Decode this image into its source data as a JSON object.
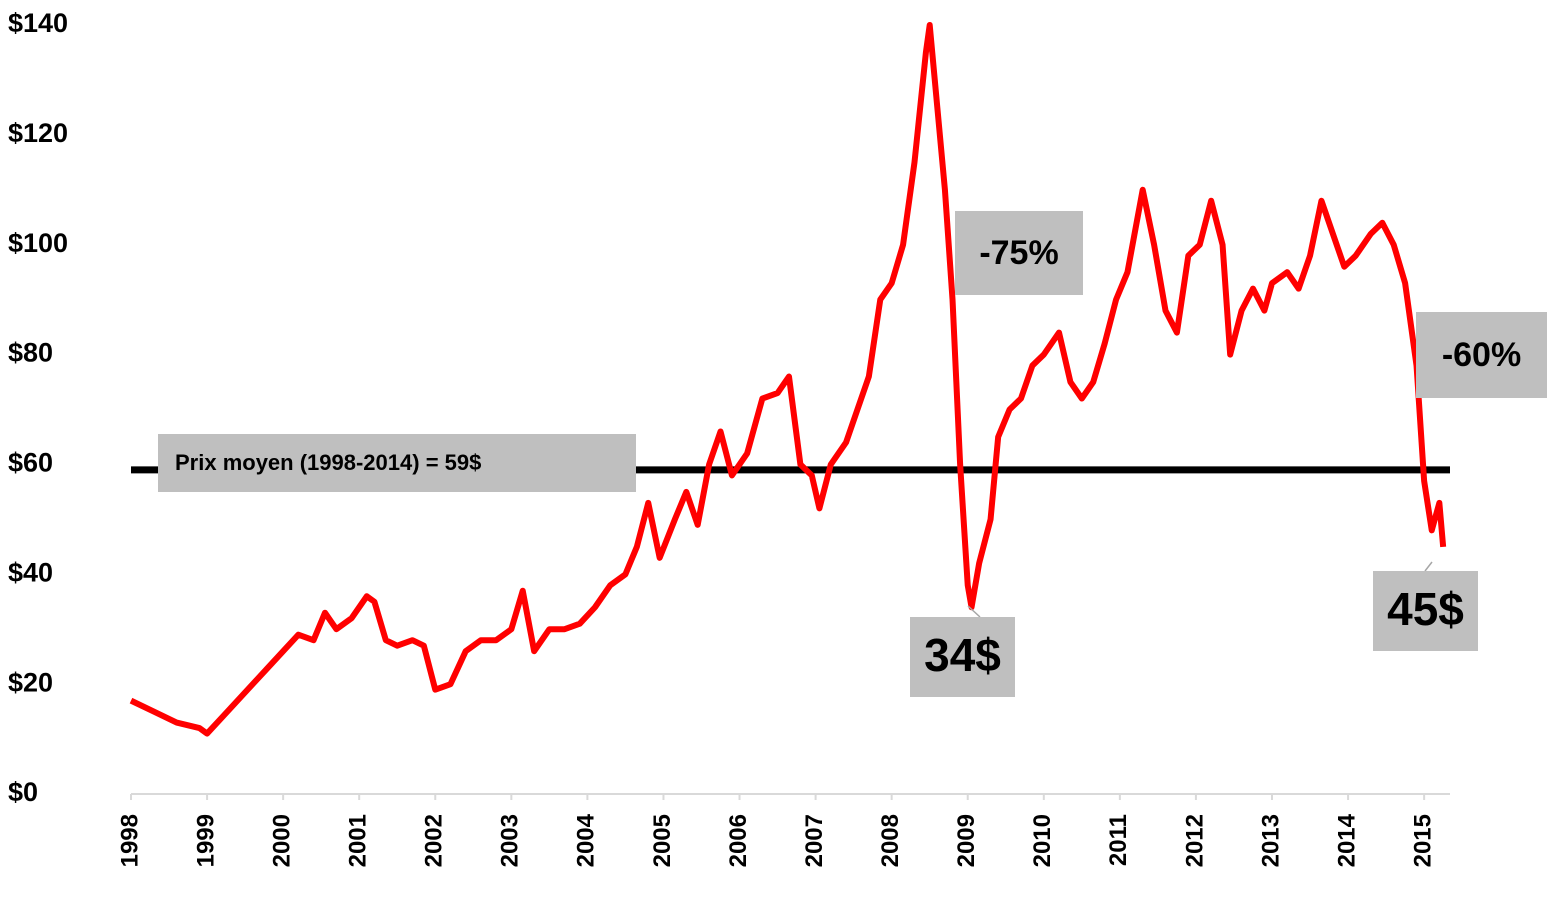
{
  "chart_data": {
    "type": "line",
    "x": [
      1998.0,
      1998.3,
      1998.6,
      1998.9,
      1999.0,
      1999.2,
      1999.4,
      1999.6,
      1999.8,
      2000.0,
      2000.2,
      2000.4,
      2000.55,
      2000.7,
      2000.9,
      2001.1,
      2001.2,
      2001.35,
      2001.5,
      2001.7,
      2001.85,
      2002.0,
      2002.2,
      2002.4,
      2002.6,
      2002.8,
      2003.0,
      2003.15,
      2003.3,
      2003.5,
      2003.7,
      2003.9,
      2004.1,
      2004.3,
      2004.5,
      2004.65,
      2004.8,
      2004.95,
      2005.15,
      2005.3,
      2005.45,
      2005.6,
      2005.75,
      2005.9,
      2006.1,
      2006.3,
      2006.5,
      2006.65,
      2006.8,
      2006.95,
      2007.05,
      2007.2,
      2007.4,
      2007.55,
      2007.7,
      2007.85,
      2008.0,
      2008.15,
      2008.3,
      2008.45,
      2008.5,
      2008.6,
      2008.7,
      2008.8,
      2008.9,
      2009.0,
      2009.05,
      2009.15,
      2009.3,
      2009.4,
      2009.55,
      2009.7,
      2009.85,
      2010.0,
      2010.2,
      2010.35,
      2010.5,
      2010.65,
      2010.8,
      2010.95,
      2011.1,
      2011.3,
      2011.45,
      2011.6,
      2011.75,
      2011.9,
      2012.05,
      2012.2,
      2012.35,
      2012.45,
      2012.6,
      2012.75,
      2012.9,
      2013.0,
      2013.2,
      2013.35,
      2013.5,
      2013.65,
      2013.8,
      2013.95,
      2014.1,
      2014.3,
      2014.45,
      2014.6,
      2014.75,
      2014.9,
      2015.0,
      2015.1,
      2015.2,
      2015.25
    ],
    "series": [
      {
        "color": "#ff0000",
        "values": [
          17,
          15,
          13,
          12,
          11,
          14,
          17,
          20,
          23,
          26,
          29,
          28,
          33,
          30,
          32,
          36,
          35,
          28,
          27,
          28,
          27,
          19,
          20,
          26,
          28,
          28,
          30,
          37,
          26,
          30,
          30,
          31,
          34,
          38,
          40,
          45,
          53,
          43,
          50,
          55,
          49,
          60,
          66,
          58,
          62,
          72,
          73,
          76,
          60,
          58,
          52,
          60,
          64,
          70,
          76,
          90,
          93,
          100,
          115,
          135,
          140,
          125,
          110,
          90,
          60,
          38,
          34,
          42,
          50,
          65,
          70,
          72,
          78,
          80,
          84,
          75,
          72,
          75,
          82,
          90,
          95,
          110,
          100,
          88,
          84,
          98,
          100,
          108,
          100,
          80,
          88,
          92,
          88,
          93,
          95,
          92,
          98,
          108,
          102,
          96,
          98,
          102,
          104,
          100,
          93,
          78,
          57,
          48,
          53,
          45
        ]
      }
    ],
    "xlim": [
      1998,
      2015.34
    ],
    "ylim": [
      0,
      140
    ],
    "xticks": [
      1998,
      1999,
      2000,
      2001,
      2002,
      2003,
      2004,
      2005,
      2006,
      2007,
      2008,
      2009,
      2010,
      2011,
      2012,
      2013,
      2014,
      2015
    ],
    "yticks": [
      {
        "value": 0,
        "label": "$0"
      },
      {
        "value": 20,
        "label": "$20"
      },
      {
        "value": 40,
        "label": "$40"
      },
      {
        "value": 60,
        "label": "$60"
      },
      {
        "value": 80,
        "label": "$80"
      },
      {
        "value": 100,
        "label": "$100"
      },
      {
        "value": 120,
        "label": "$120"
      },
      {
        "value": 140,
        "label": "$140"
      }
    ],
    "reference_line": {
      "value": 59,
      "label": "Prix moyen (1998-2014) = 59$",
      "color": "#000000"
    },
    "annotations": [
      {
        "text": "-75%"
      },
      {
        "text": "-60%"
      },
      {
        "text": "34$"
      },
      {
        "text": "45$"
      }
    ]
  }
}
